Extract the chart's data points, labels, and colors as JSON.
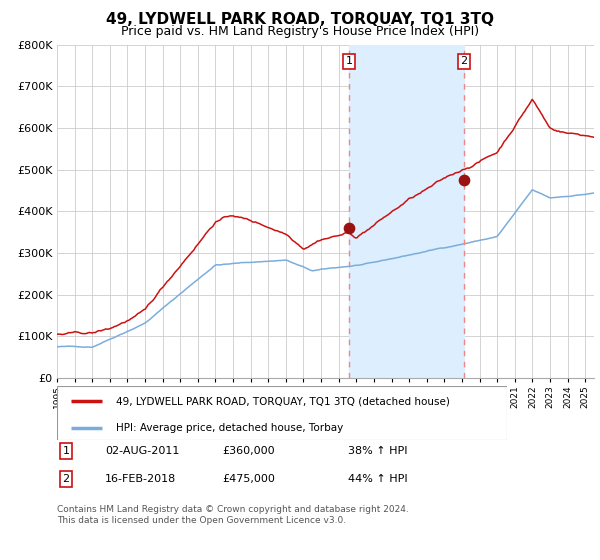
{
  "title": "49, LYDWELL PARK ROAD, TORQUAY, TQ1 3TQ",
  "subtitle": "Price paid vs. HM Land Registry's House Price Index (HPI)",
  "legend_line1": "49, LYDWELL PARK ROAD, TORQUAY, TQ1 3TQ (detached house)",
  "legend_line2": "HPI: Average price, detached house, Torbay",
  "footnote": "Contains HM Land Registry data © Crown copyright and database right 2024.\nThis data is licensed under the Open Government Licence v3.0.",
  "sale1_date": "02-AUG-2011",
  "sale1_price": "£360,000",
  "sale1_hpi": "38% ↑ HPI",
  "sale1_x": 2011.583,
  "sale1_y": 360000,
  "sale2_date": "16-FEB-2018",
  "sale2_price": "£475,000",
  "sale2_hpi": "44% ↑ HPI",
  "sale2_x": 2018.125,
  "sale2_y": 475000,
  "shade_x1": 2011.583,
  "shade_x2": 2018.125,
  "hpi_color": "#7aaddc",
  "property_color": "#cc1111",
  "shade_color": "#ddeeff",
  "dashed_line_color": "#ee8888",
  "marker_color": "#991111",
  "grid_color": "#cccccc",
  "background_color": "#ffffff",
  "ylim": [
    0,
    800000
  ],
  "xlim_start": 1995,
  "xlim_end": 2025.5,
  "title_fontsize": 11,
  "subtitle_fontsize": 9
}
